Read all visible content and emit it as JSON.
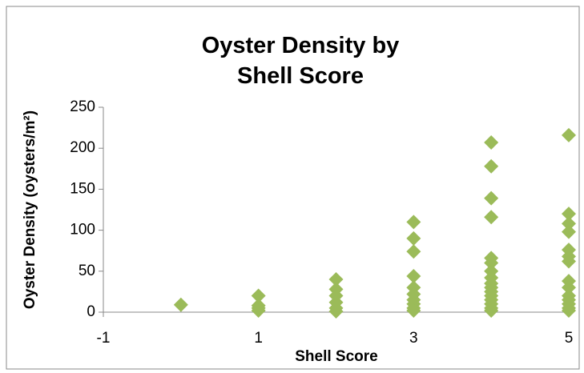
{
  "chart_data": {
    "type": "scatter",
    "title": "Oyster Density by Shell Score",
    "x_label": "Shell Score",
    "y_label": "Oyster Density (oysters/m²)",
    "color": "#9bbb59",
    "x": [
      0,
      1,
      1,
      1,
      1,
      2,
      2,
      2,
      2,
      2,
      2,
      3,
      3,
      3,
      3,
      3,
      3,
      3,
      3,
      3,
      3,
      4,
      4,
      4,
      4,
      4,
      4,
      4,
      4,
      4,
      4,
      4,
      4,
      4,
      4,
      4,
      4,
      5,
      5,
      5,
      5,
      5,
      5,
      5,
      5,
      5,
      5,
      5,
      5,
      5,
      5
    ],
    "values": [
      9,
      20,
      8,
      5,
      2,
      40,
      28,
      20,
      12,
      5,
      1,
      110,
      90,
      74,
      44,
      30,
      22,
      15,
      10,
      5,
      2,
      207,
      178,
      139,
      116,
      66,
      60,
      50,
      42,
      35,
      30,
      25,
      20,
      15,
      10,
      5,
      2,
      216,
      120,
      108,
      98,
      76,
      68,
      62,
      38,
      30,
      20,
      15,
      10,
      5,
      2
    ],
    "xlim": [
      -1,
      5
    ],
    "xticks": [
      -1,
      1,
      3,
      5
    ],
    "ylim": [
      0,
      250
    ],
    "yticks": [
      0,
      50,
      100,
      150,
      200,
      250
    ],
    "grid": false
  }
}
